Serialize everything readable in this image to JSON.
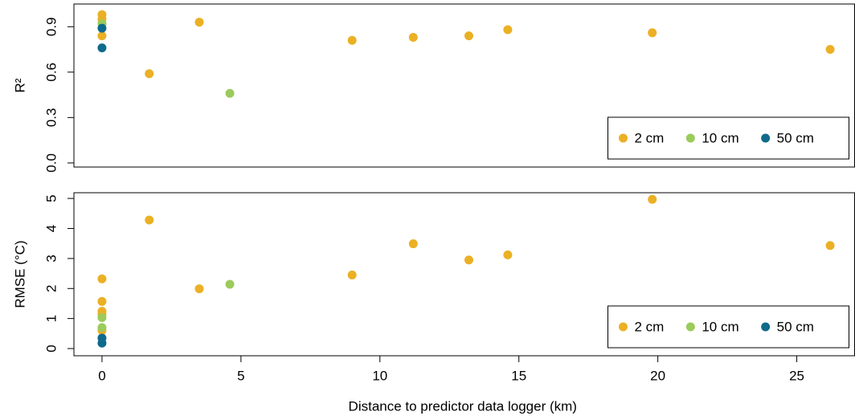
{
  "chart_data": [
    {
      "type": "scatter",
      "ylabel": "R²",
      "xlim": [
        -1.01,
        27.08
      ],
      "ylim": [
        -0.027,
        1.05
      ],
      "yticks": [
        {
          "value": 0,
          "label": "0.0"
        },
        0.3,
        0.6,
        0.9
      ],
      "legend": "bottom-right",
      "series": [
        {
          "name": "2 cm",
          "color": "#ebb024",
          "x": [
            0,
            0,
            0,
            0,
            1.7,
            3.5,
            9,
            11.2,
            13.2,
            14.6,
            19.8,
            26.2
          ],
          "values": [
            0.98,
            0.95,
            0.92,
            0.84,
            0.59,
            0.93,
            0.81,
            0.83,
            0.84,
            0.88,
            0.86,
            0.75
          ]
        },
        {
          "name": "10 cm",
          "color": "#9bcb5b",
          "x": [
            0,
            4.6
          ],
          "values": [
            0.92,
            0.46
          ]
        },
        {
          "name": "50 cm",
          "color": "#0f6a8c",
          "x": [
            0,
            0
          ],
          "values": [
            0.89,
            0.76
          ]
        }
      ]
    },
    {
      "type": "scatter",
      "ylabel": "RMSE (°C)",
      "xlabel": "Distance to predictor data logger (km)",
      "xlim": [
        -1.01,
        27.08
      ],
      "ylim": [
        -0.24,
        5.19
      ],
      "xticks": [
        0,
        5,
        10,
        15,
        20,
        25
      ],
      "yticks": [
        0,
        1,
        2,
        3,
        4,
        5
      ],
      "legend": "bottom-right",
      "series": [
        {
          "name": "2 cm",
          "color": "#ebb024",
          "x": [
            0,
            0,
            0,
            0,
            0,
            1.7,
            3.5,
            9,
            11.2,
            13.2,
            14.6,
            19.8,
            26.2
          ],
          "values": [
            2.32,
            1.57,
            1.24,
            1.13,
            0.6,
            4.28,
            1.99,
            2.45,
            3.49,
            2.95,
            3.12,
            4.97,
            3.43
          ]
        },
        {
          "name": "10 cm",
          "color": "#9bcb5b",
          "x": [
            0,
            0,
            4.6
          ],
          "values": [
            1.03,
            0.7,
            2.14
          ]
        },
        {
          "name": "50 cm",
          "color": "#0f6a8c",
          "x": [
            0,
            0
          ],
          "values": [
            0.35,
            0.18
          ]
        }
      ]
    }
  ]
}
